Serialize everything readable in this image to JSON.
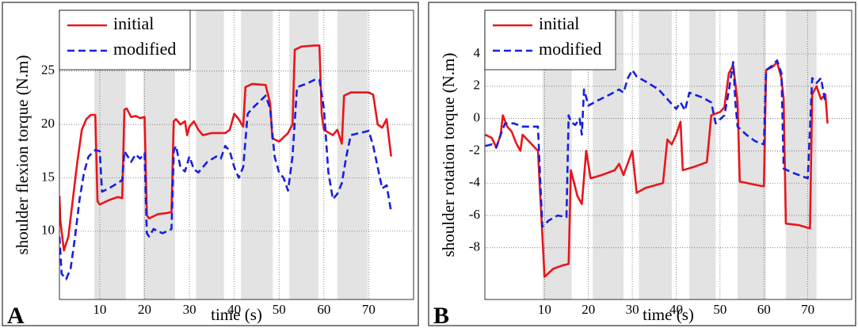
{
  "chart_data": [
    {
      "type": "line",
      "panel_label": "A",
      "y_label": "shoulder flexion torque (N.m)",
      "x_label": "time (s)",
      "xlim": [
        1,
        80
      ],
      "ylim": [
        3.6,
        30.7
      ],
      "xticks": [
        10,
        20,
        30,
        40,
        50,
        60,
        70
      ],
      "yticks": [
        10,
        15,
        20,
        25
      ],
      "grid": true,
      "legend": "upper left",
      "shaded_intervals": [
        [
          8.8,
          15.8
        ],
        [
          19.7,
          26.8
        ],
        [
          31.5,
          37.7
        ],
        [
          41.5,
          48.6
        ],
        [
          52.3,
          58.8
        ],
        [
          63,
          69.8
        ]
      ],
      "shade_color": "#e3e3e3",
      "series": [
        {
          "name": "initial",
          "color": "#e8161b",
          "dash": false,
          "x": [
            1,
            1.2,
            2,
            3,
            4,
            5,
            6,
            7,
            8,
            9,
            9.5,
            10,
            12,
            14,
            15,
            15.5,
            16,
            17,
            18,
            19,
            20,
            20.5,
            21,
            23,
            25,
            26,
            26.5,
            27,
            28,
            29,
            29.5,
            30,
            31,
            32,
            33,
            35,
            38,
            39,
            40,
            41,
            42,
            42.5,
            44,
            47,
            48,
            48.5,
            50,
            52,
            53,
            53.5,
            55,
            58,
            59,
            59.5,
            60,
            62,
            63,
            64,
            64.5,
            66,
            70,
            71,
            72,
            73,
            74,
            75
          ],
          "values": [
            13.3,
            11,
            8.2,
            9.5,
            13,
            16.5,
            19.5,
            20.5,
            20.9,
            20.9,
            12.8,
            12.5,
            12.9,
            13.2,
            13.1,
            21.4,
            21.5,
            20.7,
            20.8,
            20.6,
            20.7,
            11.5,
            11.2,
            11.6,
            11.7,
            11.8,
            20.3,
            20.5,
            20,
            20.3,
            19,
            19.8,
            20.3,
            19.5,
            19,
            19.2,
            19.2,
            19.5,
            21,
            20.5,
            19.8,
            23.5,
            23.8,
            23.7,
            22,
            18.7,
            18.4,
            19.2,
            20,
            27,
            27.3,
            27.4,
            27.4,
            21,
            19.5,
            19,
            19.5,
            18.2,
            22.7,
            23,
            23,
            22.8,
            20,
            19.7,
            20.5,
            17
          ]
        },
        {
          "name": "modified",
          "color": "#1620e0",
          "dash": true,
          "x": [
            1,
            1.5,
            2.5,
            3.5,
            4.5,
            5.5,
            6.5,
            7.5,
            9,
            10,
            10.5,
            12,
            14,
            15,
            15.5,
            17,
            18,
            19,
            20,
            20.5,
            21,
            22,
            24,
            26,
            26.5,
            27,
            28,
            29,
            30,
            31,
            32,
            34,
            36,
            37,
            38,
            39,
            40,
            41,
            42,
            43,
            44,
            46,
            47,
            48,
            49,
            50,
            51,
            52,
            53,
            54,
            56,
            58,
            59,
            60,
            61,
            62,
            63,
            64,
            65,
            66,
            68,
            70,
            71,
            72,
            73,
            74,
            75
          ],
          "values": [
            9.5,
            6,
            5.5,
            6.5,
            9.5,
            13,
            15.5,
            17,
            17.6,
            17.5,
            13.7,
            14,
            14.5,
            14.8,
            17.5,
            16.5,
            17.2,
            16.8,
            17.3,
            9.8,
            9.5,
            10.2,
            9.8,
            10.2,
            17.5,
            18,
            16,
            15.6,
            17,
            15.8,
            15.5,
            16.5,
            17,
            16.8,
            18,
            17.5,
            16,
            15,
            16,
            21,
            21.5,
            22.3,
            22.7,
            21.5,
            17,
            15.5,
            15,
            13.8,
            17,
            23.5,
            23.8,
            24.2,
            24.2,
            21.5,
            15.5,
            13,
            13.5,
            14.5,
            17,
            19,
            19.2,
            19.4,
            18,
            16,
            14,
            14.3,
            11.8
          ]
        }
      ]
    },
    {
      "type": "line",
      "panel_label": "B",
      "y_label": "shoulder rotation torque (N.m)",
      "x_label": "time (s)",
      "xlim": [
        -3.6,
        80
      ],
      "ylim": [
        -11.2,
        6.7
      ],
      "xticks": [
        10,
        20,
        30,
        40,
        50,
        60,
        70
      ],
      "yticks": [
        -8,
        -6,
        -4,
        -2,
        0,
        2,
        4
      ],
      "grid": true,
      "legend": "upper left",
      "shaded_intervals": [
        [
          9.6,
          16.2
        ],
        [
          21,
          28
        ],
        [
          31.5,
          39
        ],
        [
          43,
          49
        ],
        [
          54,
          60.5
        ],
        [
          65,
          72
        ]
      ],
      "shade_color": "#e3e3e3",
      "series": [
        {
          "name": "initial",
          "color": "#e8161b",
          "dash": false,
          "x": [
            -3.5,
            -2,
            -1,
            0,
            0.5,
            1.5,
            2.5,
            3.5,
            4.5,
            5,
            8.5,
            10,
            12,
            14,
            15.5,
            16,
            17.5,
            18.5,
            19.5,
            20.5,
            23,
            26,
            27,
            28,
            30,
            31,
            33,
            37,
            38,
            39,
            40,
            41,
            41.5,
            44,
            47,
            48,
            50,
            51,
            52,
            53,
            54,
            54.5,
            58,
            60,
            60.5,
            62,
            63,
            64,
            64.5,
            65,
            68,
            70.5,
            71,
            72,
            73,
            74,
            74.5
          ],
          "values": [
            -1,
            -1.2,
            -1.8,
            -1,
            0.2,
            -0.5,
            -0.8,
            -1.5,
            -2,
            -1,
            -2,
            -9.8,
            -9.3,
            -9.1,
            -9,
            -3.2,
            -4.8,
            -5.3,
            -2,
            -3.7,
            -3.5,
            -3.2,
            -2.8,
            -3.5,
            -2,
            -4.6,
            -4.3,
            -4,
            -1.3,
            -1.6,
            -1,
            -0.2,
            -3.2,
            -3,
            -2.7,
            0.2,
            0.4,
            0.7,
            2.8,
            3.3,
            1,
            -3.9,
            -4.1,
            -4.2,
            3,
            3.2,
            3.5,
            2.5,
            1.2,
            -6.5,
            -6.6,
            -6.8,
            1.5,
            2,
            1.2,
            1.5,
            -0.3
          ]
        },
        {
          "name": "modified",
          "color": "#1620e0",
          "dash": true,
          "x": [
            -3.5,
            -2,
            -1,
            0,
            1,
            3,
            5,
            8.5,
            9.5,
            11,
            13,
            15,
            15.5,
            16,
            17,
            18,
            18.5,
            19,
            20,
            22,
            25,
            27,
            28,
            29,
            30,
            31,
            33,
            36,
            38,
            40,
            41,
            42,
            43,
            46,
            48,
            49,
            51,
            52,
            53,
            53.5,
            54,
            56,
            58,
            60,
            60.5,
            62,
            63,
            64,
            64.5,
            67,
            70,
            71,
            72,
            73,
            74
          ],
          "values": [
            -1.7,
            -1.6,
            -1.8,
            -1,
            -0.3,
            -0.3,
            -0.5,
            -0.5,
            -6.7,
            -6.3,
            -6,
            -6.1,
            0.2,
            -0.2,
            -0.4,
            0,
            -1,
            1.8,
            0.8,
            1.1,
            1.5,
            1.8,
            1.6,
            2.5,
            3,
            2.6,
            2.3,
            1.8,
            1.2,
            0.6,
            1,
            0.5,
            1.6,
            1.3,
            1,
            -0.3,
            0.2,
            1.7,
            3.5,
            1,
            -0.5,
            -1,
            -1.4,
            -1.6,
            3,
            3.3,
            3.6,
            2.8,
            -3.1,
            -3.4,
            -3.7,
            2.5,
            2.2,
            2.5,
            1
          ]
        }
      ]
    }
  ]
}
